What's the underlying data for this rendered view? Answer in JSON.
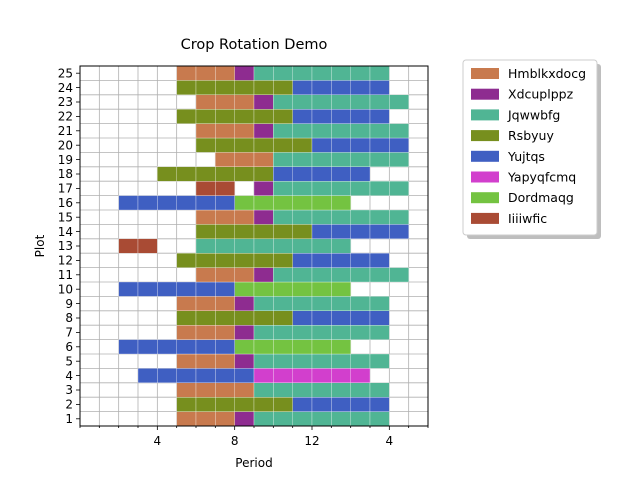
{
  "chart_data": {
    "type": "bar",
    "orientation": "horizontal",
    "stacked": true,
    "title": "Crop Rotation Demo",
    "xlabel": "Period",
    "ylabel": "Plot",
    "xlim": [
      -1,
      17
    ],
    "ylim": [
      0,
      25
    ],
    "grid": true,
    "legend_position": "outside-right",
    "x_ticks": [
      {
        "value": 3,
        "label": "4"
      },
      {
        "value": 7,
        "label": "8"
      },
      {
        "value": 11,
        "label": "12"
      },
      {
        "value": 15,
        "label": "4"
      }
    ],
    "plots": [
      "1",
      "2",
      "3",
      "4",
      "5",
      "6",
      "7",
      "8",
      "9",
      "10",
      "11",
      "12",
      "13",
      "14",
      "15",
      "16",
      "17",
      "18",
      "19",
      "20",
      "21",
      "22",
      "23",
      "24",
      "25"
    ],
    "crops": [
      {
        "name": "Hmblkxdocg",
        "color": "#c87a4e"
      },
      {
        "name": "Xdcuplppz",
        "color": "#8e2c90"
      },
      {
        "name": "Jqwwbfg",
        "color": "#50b594"
      },
      {
        "name": "Rsbyuy",
        "color": "#778f1e"
      },
      {
        "name": "Yujtqs",
        "color": "#3f5fc2"
      },
      {
        "name": "Yapyqfcmq",
        "color": "#d23fcd"
      },
      {
        "name": "Dordmaqg",
        "color": "#74c341"
      },
      {
        "name": "Iiiiwfic",
        "color": "#a94b34"
      }
    ],
    "series": [
      {
        "plot": "1",
        "segments": [
          {
            "crop": "Hmblkxdocg",
            "start": 4,
            "end": 7
          },
          {
            "crop": "Xdcuplppz",
            "start": 7,
            "end": 8
          },
          {
            "crop": "Jqwwbfg",
            "start": 8,
            "end": 15
          }
        ]
      },
      {
        "plot": "2",
        "segments": [
          {
            "crop": "Rsbyuy",
            "start": 4,
            "end": 10
          },
          {
            "crop": "Yujtqs",
            "start": 10,
            "end": 15
          }
        ]
      },
      {
        "plot": "3",
        "segments": [
          {
            "crop": "Hmblkxdocg",
            "start": 4,
            "end": 8
          },
          {
            "crop": "Jqwwbfg",
            "start": 8,
            "end": 15
          }
        ]
      },
      {
        "plot": "4",
        "segments": [
          {
            "crop": "Yujtqs",
            "start": 2,
            "end": 8
          },
          {
            "crop": "Yapyqfcmq",
            "start": 8,
            "end": 14
          }
        ]
      },
      {
        "plot": "5",
        "segments": [
          {
            "crop": "Hmblkxdocg",
            "start": 4,
            "end": 7
          },
          {
            "crop": "Xdcuplppz",
            "start": 7,
            "end": 8
          },
          {
            "crop": "Jqwwbfg",
            "start": 8,
            "end": 15
          }
        ]
      },
      {
        "plot": "6",
        "segments": [
          {
            "crop": "Yujtqs",
            "start": 1,
            "end": 7
          },
          {
            "crop": "Dordmaqg",
            "start": 7,
            "end": 13
          }
        ]
      },
      {
        "plot": "7",
        "segments": [
          {
            "crop": "Hmblkxdocg",
            "start": 4,
            "end": 7
          },
          {
            "crop": "Xdcuplppz",
            "start": 7,
            "end": 8
          },
          {
            "crop": "Jqwwbfg",
            "start": 8,
            "end": 15
          }
        ]
      },
      {
        "plot": "8",
        "segments": [
          {
            "crop": "Rsbyuy",
            "start": 4,
            "end": 10
          },
          {
            "crop": "Yujtqs",
            "start": 10,
            "end": 15
          }
        ]
      },
      {
        "plot": "9",
        "segments": [
          {
            "crop": "Hmblkxdocg",
            "start": 4,
            "end": 7
          },
          {
            "crop": "Xdcuplppz",
            "start": 7,
            "end": 8
          },
          {
            "crop": "Jqwwbfg",
            "start": 8,
            "end": 15
          }
        ]
      },
      {
        "plot": "10",
        "segments": [
          {
            "crop": "Yujtqs",
            "start": 1,
            "end": 7
          },
          {
            "crop": "Dordmaqg",
            "start": 7,
            "end": 13
          }
        ]
      },
      {
        "plot": "11",
        "segments": [
          {
            "crop": "Hmblkxdocg",
            "start": 5,
            "end": 8
          },
          {
            "crop": "Xdcuplppz",
            "start": 8,
            "end": 9
          },
          {
            "crop": "Jqwwbfg",
            "start": 9,
            "end": 16
          }
        ]
      },
      {
        "plot": "12",
        "segments": [
          {
            "crop": "Rsbyuy",
            "start": 4,
            "end": 10
          },
          {
            "crop": "Yujtqs",
            "start": 10,
            "end": 15
          }
        ]
      },
      {
        "plot": "13",
        "segments": [
          {
            "crop": "Iiiiwfic",
            "start": 1,
            "end": 3
          },
          {
            "crop": "Jqwwbfg",
            "start": 5,
            "end": 13
          }
        ]
      },
      {
        "plot": "14",
        "segments": [
          {
            "crop": "Rsbyuy",
            "start": 5,
            "end": 11
          },
          {
            "crop": "Yujtqs",
            "start": 11,
            "end": 16
          }
        ]
      },
      {
        "plot": "15",
        "segments": [
          {
            "crop": "Hmblkxdocg",
            "start": 5,
            "end": 8
          },
          {
            "crop": "Xdcuplppz",
            "start": 8,
            "end": 9
          },
          {
            "crop": "Jqwwbfg",
            "start": 9,
            "end": 16
          }
        ]
      },
      {
        "plot": "16",
        "segments": [
          {
            "crop": "Yujtqs",
            "start": 1,
            "end": 7
          },
          {
            "crop": "Dordmaqg",
            "start": 7,
            "end": 13
          }
        ]
      },
      {
        "plot": "17",
        "segments": [
          {
            "crop": "Iiiiwfic",
            "start": 5,
            "end": 7
          },
          {
            "crop": "Xdcuplppz",
            "start": 8,
            "end": 9
          },
          {
            "crop": "Jqwwbfg",
            "start": 9,
            "end": 16
          }
        ]
      },
      {
        "plot": "18",
        "segments": [
          {
            "crop": "Rsbyuy",
            "start": 3,
            "end": 9
          },
          {
            "crop": "Yujtqs",
            "start": 9,
            "end": 14
          }
        ]
      },
      {
        "plot": "19",
        "segments": [
          {
            "crop": "Hmblkxdocg",
            "start": 6,
            "end": 9
          },
          {
            "crop": "Jqwwbfg",
            "start": 9,
            "end": 16
          }
        ]
      },
      {
        "plot": "20",
        "segments": [
          {
            "crop": "Rsbyuy",
            "start": 5,
            "end": 11
          },
          {
            "crop": "Yujtqs",
            "start": 11,
            "end": 16
          }
        ]
      },
      {
        "plot": "21",
        "segments": [
          {
            "crop": "Hmblkxdocg",
            "start": 5,
            "end": 8
          },
          {
            "crop": "Xdcuplppz",
            "start": 8,
            "end": 9
          },
          {
            "crop": "Jqwwbfg",
            "start": 9,
            "end": 16
          }
        ]
      },
      {
        "plot": "22",
        "segments": [
          {
            "crop": "Rsbyuy",
            "start": 4,
            "end": 10
          },
          {
            "crop": "Yujtqs",
            "start": 10,
            "end": 15
          }
        ]
      },
      {
        "plot": "23",
        "segments": [
          {
            "crop": "Hmblkxdocg",
            "start": 5,
            "end": 8
          },
          {
            "crop": "Xdcuplppz",
            "start": 8,
            "end": 9
          },
          {
            "crop": "Jqwwbfg",
            "start": 9,
            "end": 16
          }
        ]
      },
      {
        "plot": "24",
        "segments": [
          {
            "crop": "Rsbyuy",
            "start": 4,
            "end": 10
          },
          {
            "crop": "Yujtqs",
            "start": 10,
            "end": 15
          }
        ]
      },
      {
        "plot": "25",
        "segments": [
          {
            "crop": "Hmblkxdocg",
            "start": 4,
            "end": 7
          },
          {
            "crop": "Xdcuplppz",
            "start": 7,
            "end": 8
          },
          {
            "crop": "Jqwwbfg",
            "start": 8,
            "end": 15
          }
        ]
      }
    ]
  }
}
